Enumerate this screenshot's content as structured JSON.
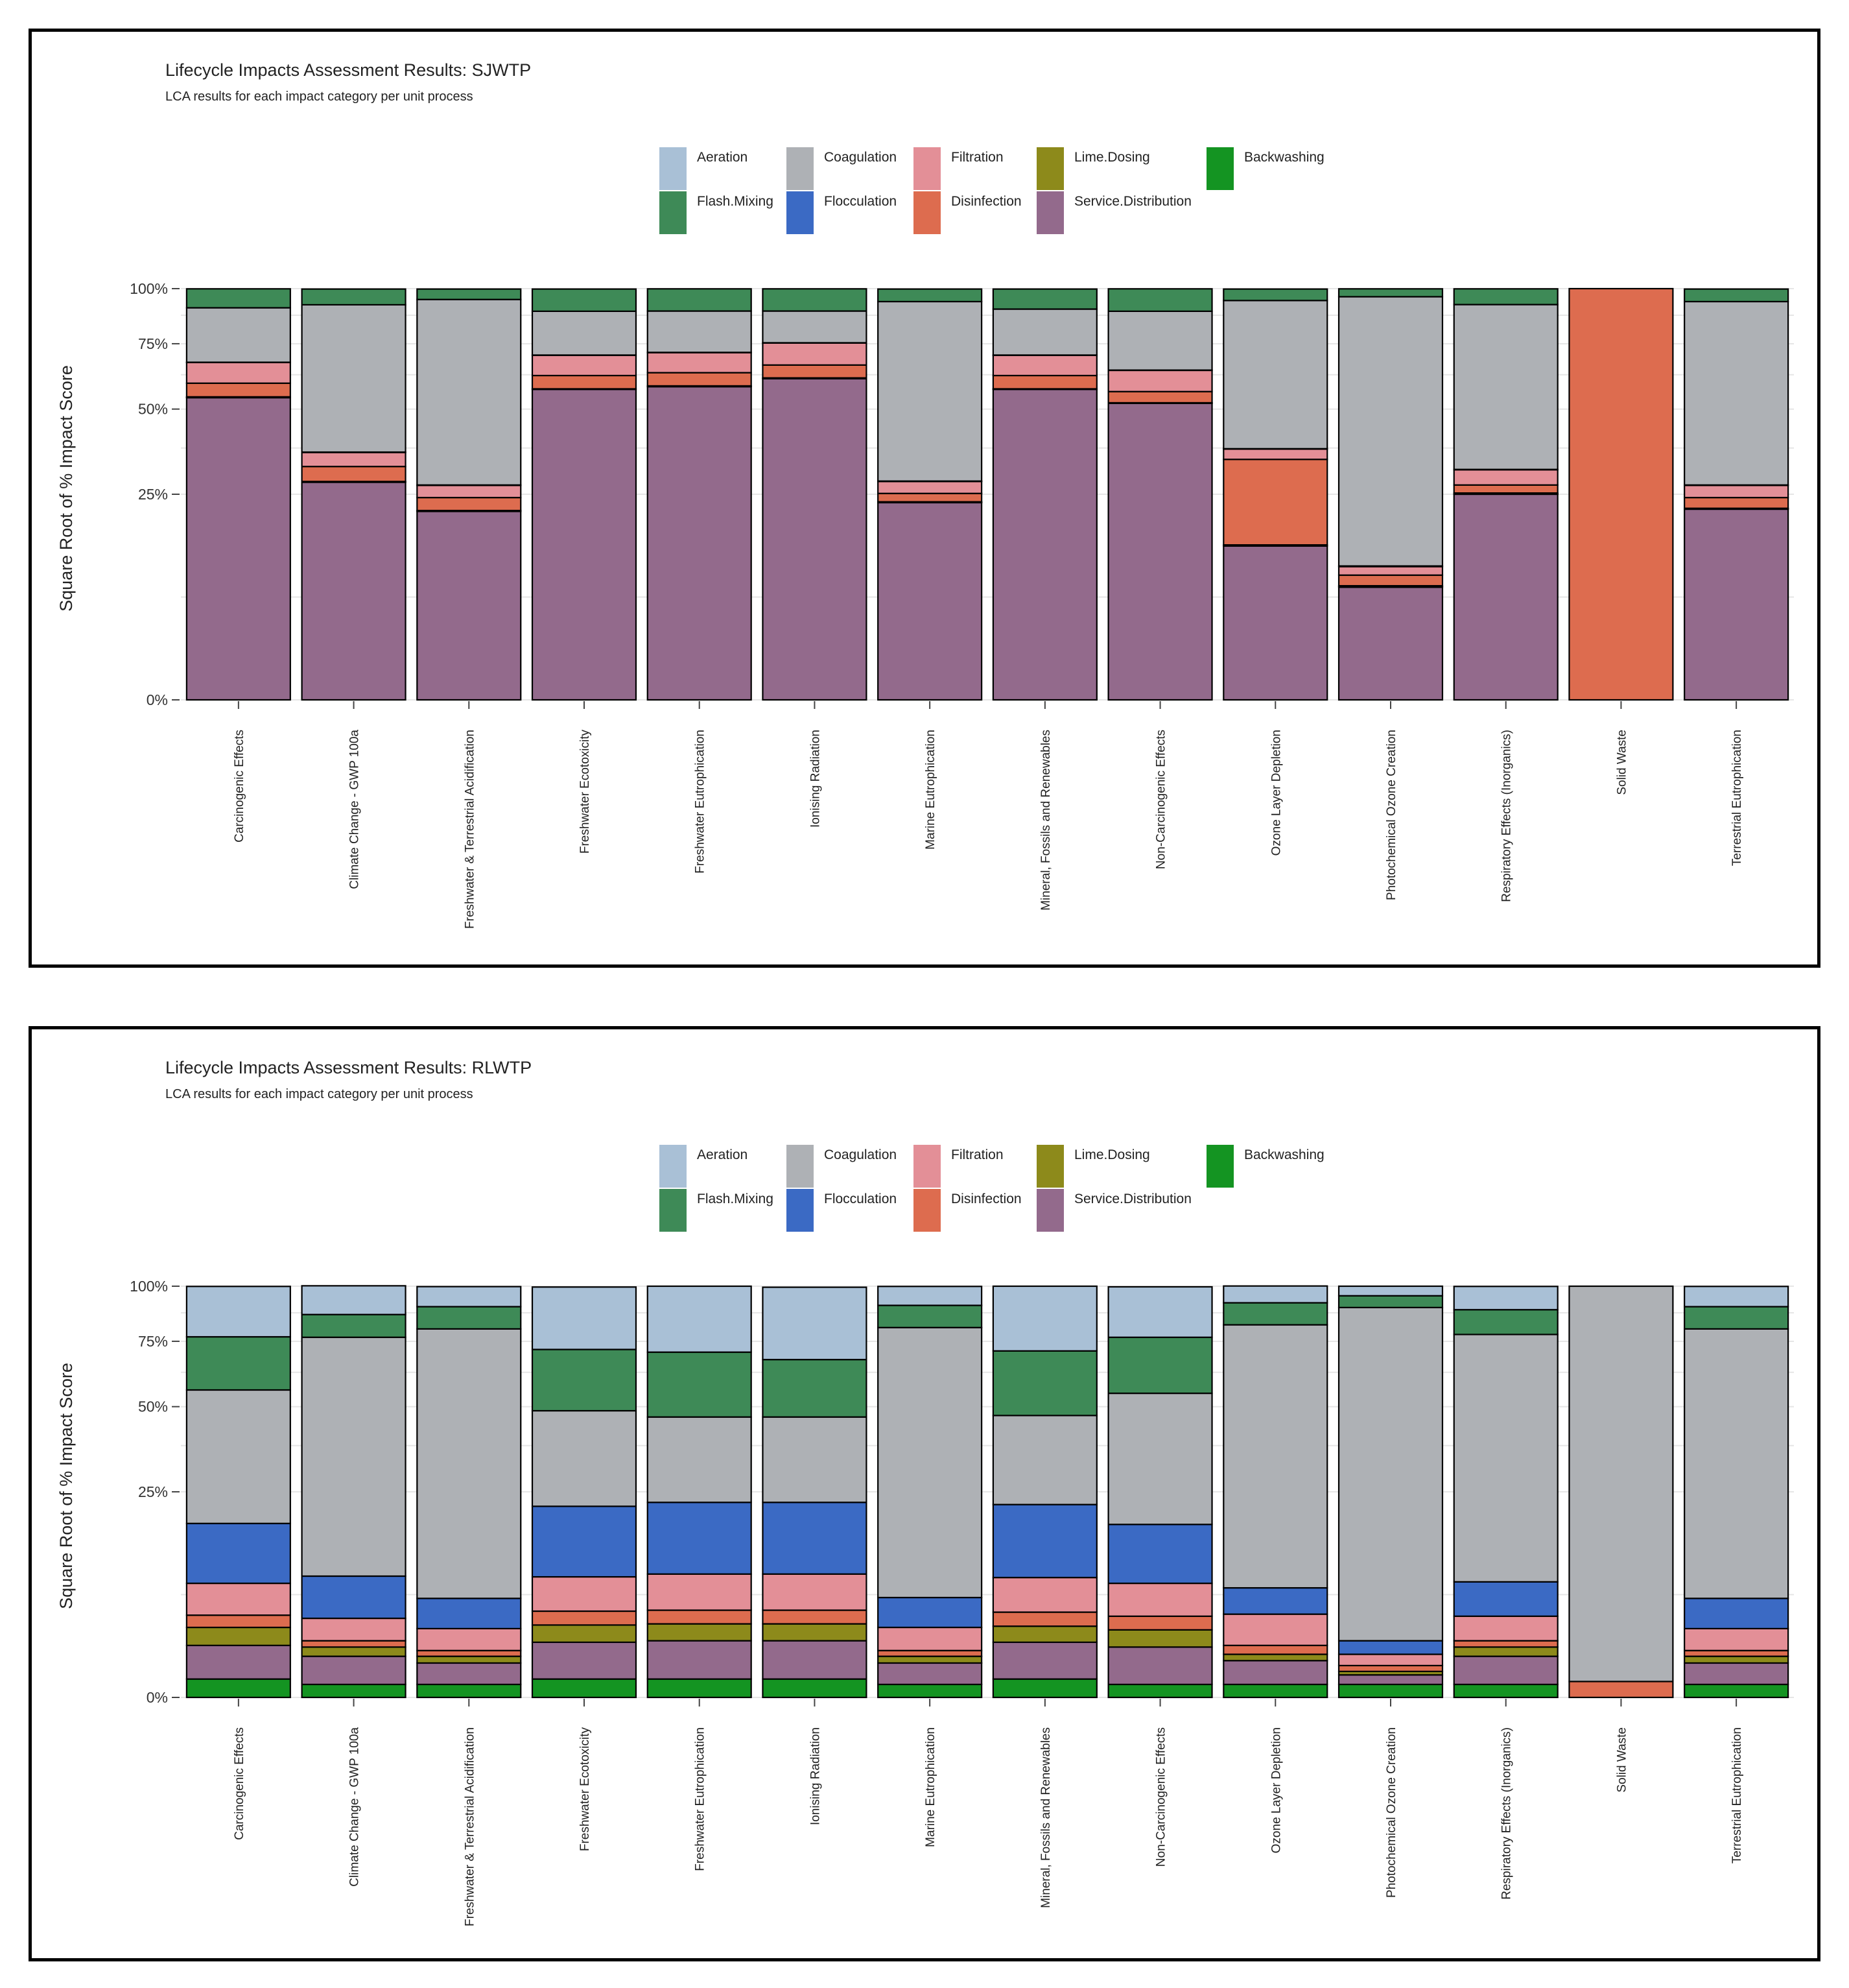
{
  "colors": {
    "Aeration": "#a9c0d6",
    "Flash.Mixing": "#3e8a57",
    "Coagulation": "#aeb1b5",
    "Flocculation": "#3b6ac4",
    "Filtration": "#e38f97",
    "Disinfection": "#dd6c4f",
    "Lime.Dosing": "#8d8a1b",
    "Service.Distribution": "#936a8c",
    "Backwashing": "#149422"
  },
  "legend_order": [
    "Aeration",
    "Coagulation",
    "Filtration",
    "Lime.Dosing",
    "Backwashing",
    "Flash.Mixing",
    "Flocculation",
    "Disinfection",
    "Service.Distribution"
  ],
  "chart_data": [
    {
      "type": "bar",
      "stacked": true,
      "title": "Lifecycle Impacts Assessment Results: SJWTP",
      "subtitle": "LCA results for each impact category per unit process",
      "ylabel": "Square Root of % Impact Score",
      "yscale": "sqrt",
      "ylim": [
        0,
        100
      ],
      "yticks": [
        0,
        25,
        50,
        75,
        100
      ],
      "ytick_labels": [
        "0%",
        "25%",
        "50%",
        "75%",
        "100%"
      ],
      "legend": "top",
      "categories": [
        "Carcinogenic Effects",
        "Climate Change - GWP 100a",
        "Freshwater & Terrestrial Acidification",
        "Freshwater Ecotoxicity",
        "Freshwater Eutrophication",
        "Ionising Radiation",
        "Marine Eutrophication",
        "Mineral, Fossils and Renewables",
        "Non-Carcinogenic Effects",
        "Ozone Layer Depletion",
        "Photochemical Ozone Creation",
        "Respiratory Effects (Inorganics)",
        "Solid Waste",
        "Terrestrial Eutrophication"
      ],
      "series": [
        {
          "name": "Service.Distribution",
          "values": [
            54,
            28,
            21,
            57,
            58,
            61,
            23,
            57,
            52,
            14,
            7.5,
            25,
            0,
            21.5
          ]
        },
        {
          "name": "Backwashing",
          "values": [
            0.1,
            0.1,
            0.1,
            0.1,
            0.1,
            0.1,
            0.1,
            0.1,
            0.1,
            0.1,
            0.1,
            0.1,
            0,
            0.1
          ]
        },
        {
          "name": "Lime.Dosing",
          "values": [
            0.2,
            0.1,
            0.1,
            0.1,
            0.2,
            0.2,
            0.1,
            0.1,
            0.1,
            0.1,
            0.1,
            0.2,
            0,
            0.1
          ]
        },
        {
          "name": "Disinfection",
          "values": [
            5,
            4,
            3,
            5,
            5,
            5,
            2,
            5,
            4,
            20,
            1.5,
            2,
            100,
            2.5
          ]
        },
        {
          "name": "Filtration",
          "values": [
            8,
            4,
            3,
            8,
            8,
            9,
            3,
            8,
            8,
            3,
            1.3,
            4,
            0,
            3
          ]
        },
        {
          "name": "Flocculation",
          "values": [
            0.1,
            0.1,
            0.1,
            0.1,
            0.1,
            0.1,
            0.1,
            0.1,
            0.1,
            0.1,
            0.1,
            0.1,
            0,
            0.1
          ]
        },
        {
          "name": "Coagulation",
          "values": [
            23.5,
            56,
            67.5,
            19,
            18,
            14,
            65.5,
            20,
            25,
            57,
            85.5,
            61,
            0,
            66.5
          ]
        },
        {
          "name": "Flash.Mixing",
          "values": [
            9,
            7.5,
            5,
            10.5,
            10.5,
            10.5,
            6,
            9.5,
            10.6,
            5.5,
            3.8,
            7.5,
            0,
            6
          ]
        },
        {
          "name": "Aeration",
          "values": [
            0,
            0,
            0,
            0,
            0,
            0,
            0,
            0,
            0,
            0,
            0,
            0,
            0,
            0
          ]
        }
      ]
    },
    {
      "type": "bar",
      "stacked": true,
      "title": "Lifecycle Impacts Assessment Results: RLWTP",
      "subtitle": "LCA results for each impact category per unit process",
      "ylabel": "Square Root of % Impact Score",
      "yscale": "sqrt",
      "ylim": [
        0,
        100
      ],
      "yticks": [
        0,
        25,
        50,
        75,
        100
      ],
      "ytick_labels": [
        "0%",
        "25%",
        "50%",
        "75%",
        "100%"
      ],
      "legend": "top",
      "categories": [
        "Carcinogenic Effects",
        "Climate Change - GWP 100a",
        "Freshwater & Terrestrial Acidification",
        "Freshwater Ecotoxicity",
        "Freshwater Eutrophication",
        "Ionising Radiation",
        "Marine Eutrophication",
        "Mineral, Fossils and Renewables",
        "Non-Carcinogenic Effects",
        "Ozone Layer Depletion",
        "Photochemical Ozone Creation",
        "Respiratory Effects (Inorganics)",
        "Solid Waste",
        "Terrestrial Eutrophication"
      ],
      "series": [
        {
          "name": "Backwashing",
          "values": [
            0.2,
            0.1,
            0.1,
            0.2,
            0.2,
            0.2,
            0.1,
            0.2,
            0.1,
            0.1,
            0.1,
            0.1,
            0,
            0.1
          ]
        },
        {
          "name": "Service.Distribution",
          "values": [
            1.4,
            0.9,
            0.6,
            1.6,
            1.7,
            1.7,
            0.6,
            1.6,
            1.4,
            0.7,
            0.2,
            0.9,
            0,
            0.6
          ]
        },
        {
          "name": "Lime.Dosing",
          "values": [
            1.3,
            0.5,
            0.3,
            1.3,
            1.3,
            1.3,
            0.3,
            1.2,
            1.2,
            0.3,
            0.1,
            0.5,
            0,
            0.3
          ]
        },
        {
          "name": "Disinfection",
          "values": [
            1.1,
            0.4,
            0.3,
            1.3,
            1.3,
            1.3,
            0.3,
            1.3,
            1.2,
            0.5,
            0.2,
            0.4,
            0.15,
            0.3
          ]
        },
        {
          "name": "Filtration",
          "values": [
            3.7,
            1.8,
            1.5,
            4.2,
            4.5,
            4.5,
            1.6,
            4.2,
            3.8,
            2.5,
            0.5,
            2.0,
            0,
            1.5
          ]
        },
        {
          "name": "Flocculation",
          "values": [
            10.2,
            5,
            3,
            13,
            13.5,
            13.5,
            3,
            13.5,
            10,
            3,
            0.8,
            4,
            0,
            3
          ]
        },
        {
          "name": "Coagulation",
          "values": [
            38,
            68,
            74.5,
            27,
            24,
            24,
            75,
            25,
            37,
            75,
            88,
            70,
            99.85,
            74.5
          ]
        },
        {
          "name": "Flash.Mixing",
          "values": [
            21,
            10,
            10,
            23,
            24,
            21,
            10,
            24,
            22,
            10,
            5.5,
            11,
            0,
            10
          ]
        },
        {
          "name": "Aeration",
          "values": [
            23,
            13.5,
            9.5,
            28,
            29.5,
            32,
            9,
            29,
            23,
            8,
            4.6,
            11,
            0,
            9.6
          ]
        }
      ]
    }
  ]
}
